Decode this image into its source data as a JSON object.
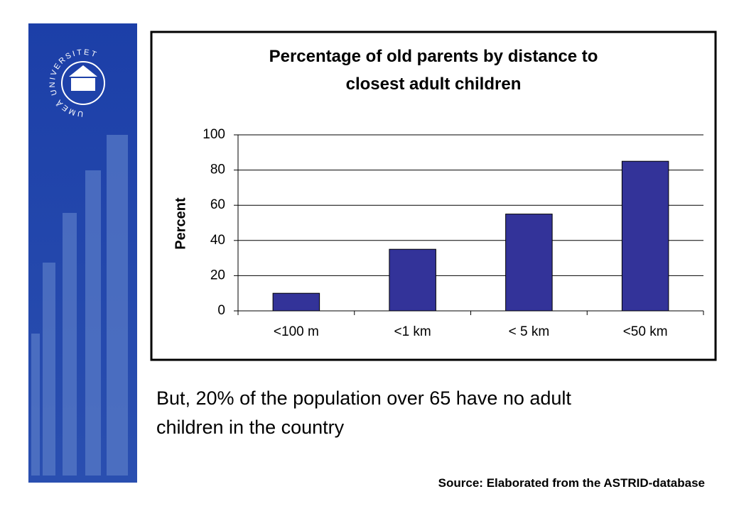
{
  "logo_text": "UMEÅ UNIVERSITET",
  "caption": "But, 20% of the population over 65 have no adult children in the country",
  "source": "Source: Elaborated from the ASTRID-database",
  "chart_data": {
    "type": "bar",
    "title": "Percentage of old parents by distance to closest adult children",
    "y_label": "Percent",
    "categories": [
      "<100 m",
      "<1 km",
      "< 5 km",
      "<50 km"
    ],
    "values": [
      10,
      35,
      55,
      85
    ],
    "color": "#333399",
    "ylim": [
      0,
      100
    ],
    "yticks": [
      0,
      20,
      40,
      60,
      80,
      100
    ],
    "grid": true
  }
}
